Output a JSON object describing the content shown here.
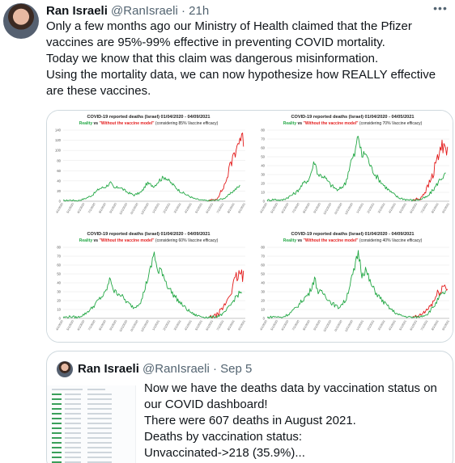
{
  "tweet": {
    "author_name": "Ran Israeli",
    "handle": "@RanIsraeli",
    "separator": "·",
    "time": "21h",
    "lines": [
      "Only a few months ago our Ministry of Health claimed that the Pfizer",
      "vaccines are 95%-99% effective in preventing COVID mortality.",
      "Today we know that this claim was dangerous misinformation.",
      "Using the mortality data, we can now hypothesize how REALLY effective",
      "are these vaccines."
    ]
  },
  "colors": {
    "reality": "#22a744",
    "model": "#e31b1b",
    "text": "#0f1419",
    "muted": "#536471",
    "border": "#cfd9de"
  },
  "icons": {
    "more": "more-icon"
  },
  "chart_data": [
    {
      "type": "line",
      "title": "COVID-19 reported deaths (Israel)  01/04/2020 - 04/09/2021",
      "subtitle_reality": "Reality",
      "subtitle_vs": " vs ",
      "subtitle_model": "\"Without the vaccine model\"",
      "subtitle_note": " (considering 85% Vaccine efficacy)",
      "y_ticks": [
        "0",
        "20",
        "40",
        "60",
        "80",
        "100",
        "120",
        "140"
      ],
      "ylim": [
        0,
        140
      ],
      "x_tick_labels": [
        "4/1/2020",
        "5/1/2020",
        "6/1/2020",
        "7/1/2020",
        "8/1/2020",
        "9/1/2020",
        "10/1/2020",
        "11/1/2020",
        "12/1/2020",
        "1/1/2021",
        "2/1/2021",
        "3/1/2021",
        "4/1/2021",
        "5/1/2021",
        "6/1/2021",
        "7/1/2021",
        "8/1/2021",
        "9/1/2021"
      ],
      "series": [
        {
          "name": "Reality",
          "points": [
            [
              0,
              1
            ],
            [
              4,
              2
            ],
            [
              8,
              1
            ],
            [
              12,
              5
            ],
            [
              16,
              12
            ],
            [
              20,
              25
            ],
            [
              23,
              28
            ],
            [
              26,
              36
            ],
            [
              28,
              25
            ],
            [
              31,
              28
            ],
            [
              35,
              18
            ],
            [
              39,
              12
            ],
            [
              43,
              18
            ],
            [
              46,
              35
            ],
            [
              50,
              30
            ],
            [
              53,
              42
            ],
            [
              56,
              48
            ],
            [
              58,
              40
            ],
            [
              61,
              30
            ],
            [
              64,
              20
            ],
            [
              68,
              12
            ],
            [
              72,
              5
            ],
            [
              76,
              2
            ],
            [
              80,
              1
            ],
            [
              84,
              2
            ],
            [
              88,
              5
            ],
            [
              91,
              12
            ],
            [
              94,
              22
            ],
            [
              97,
              30
            ]
          ]
        },
        {
          "name": "\"Without the vaccine model\"",
          "points": [
            [
              80,
              1
            ],
            [
              84,
              4
            ],
            [
              87,
              20
            ],
            [
              89,
              35
            ],
            [
              91,
              60
            ],
            [
              93,
              85
            ],
            [
              95,
              105
            ],
            [
              97,
              125
            ],
            [
              99,
              120
            ]
          ]
        }
      ]
    },
    {
      "type": "line",
      "title": "COVID-19 reported deaths (Israel)  01/04/2020 - 04/05/2021",
      "subtitle_reality": "Reality",
      "subtitle_vs": " vs ",
      "subtitle_model": "\"Without the vaccine model\"",
      "subtitle_note": " (considering 70% Vaccine efficacy)",
      "y_ticks": [
        "0",
        "10",
        "20",
        "30",
        "40",
        "50",
        "60",
        "70",
        "80"
      ],
      "ylim": [
        0,
        80
      ],
      "x_tick_labels": [
        "4/1/2020",
        "5/1/2020",
        "6/1/2020",
        "7/1/2020",
        "8/1/2020",
        "9/1/2020",
        "10/1/2020",
        "11/1/2020",
        "12/1/2020",
        "1/1/2021",
        "2/1/2021",
        "3/1/2021",
        "4/1/2021",
        "5/1/2021",
        "6/1/2021",
        "7/1/2021",
        "8/1/2021",
        "9/1/2021"
      ],
      "series": [
        {
          "name": "Reality",
          "points": [
            [
              0,
              1
            ],
            [
              4,
              2
            ],
            [
              8,
              1
            ],
            [
              12,
              5
            ],
            [
              16,
              10
            ],
            [
              20,
              20
            ],
            [
              23,
              25
            ],
            [
              26,
              45
            ],
            [
              28,
              30
            ],
            [
              31,
              28
            ],
            [
              35,
              18
            ],
            [
              39,
              12
            ],
            [
              43,
              20
            ],
            [
              46,
              45
            ],
            [
              48,
              52
            ],
            [
              50,
              75
            ],
            [
              52,
              50
            ],
            [
              54,
              55
            ],
            [
              57,
              38
            ],
            [
              60,
              28
            ],
            [
              64,
              18
            ],
            [
              68,
              10
            ],
            [
              72,
              4
            ],
            [
              76,
              2
            ],
            [
              80,
              1
            ],
            [
              84,
              2
            ],
            [
              88,
              5
            ],
            [
              92,
              15
            ],
            [
              95,
              25
            ],
            [
              98,
              30
            ]
          ]
        },
        {
          "name": "\"Without the vaccine model\"",
          "points": [
            [
              80,
              1
            ],
            [
              84,
              3
            ],
            [
              88,
              15
            ],
            [
              91,
              30
            ],
            [
              93,
              45
            ],
            [
              95,
              58
            ],
            [
              97,
              65
            ],
            [
              99,
              60
            ]
          ]
        }
      ]
    },
    {
      "type": "line",
      "title": "COVID-19 reported deaths (Israel)  01/04/2020 - 04/09/2021",
      "subtitle_reality": "Reality",
      "subtitle_vs": " vs ",
      "subtitle_model": "\"Without the vaccine model\"",
      "subtitle_note": " (considering 60% Vaccine efficacy)",
      "y_ticks": [
        "0",
        "10",
        "20",
        "30",
        "40",
        "50",
        "60",
        "70",
        "80"
      ],
      "ylim": [
        0,
        80
      ],
      "x_tick_labels": [
        "4/1/2020",
        "5/1/2020",
        "6/1/2020",
        "7/1/2020",
        "8/1/2020",
        "9/1/2020",
        "10/1/2020",
        "11/1/2020",
        "12/1/2020",
        "1/1/2021",
        "2/1/2021",
        "3/1/2021",
        "4/1/2021",
        "5/1/2021",
        "6/1/2021",
        "7/1/2021",
        "8/1/2021",
        "9/1/2021"
      ],
      "series": [
        {
          "name": "Reality",
          "points": [
            [
              0,
              1
            ],
            [
              4,
              2
            ],
            [
              8,
              1
            ],
            [
              12,
              5
            ],
            [
              16,
              12
            ],
            [
              20,
              22
            ],
            [
              23,
              28
            ],
            [
              26,
              45
            ],
            [
              28,
              30
            ],
            [
              31,
              28
            ],
            [
              35,
              18
            ],
            [
              39,
              12
            ],
            [
              43,
              20
            ],
            [
              46,
              42
            ],
            [
              48,
              55
            ],
            [
              50,
              75
            ],
            [
              52,
              50
            ],
            [
              54,
              55
            ],
            [
              57,
              38
            ],
            [
              60,
              28
            ],
            [
              64,
              18
            ],
            [
              68,
              10
            ],
            [
              72,
              4
            ],
            [
              76,
              2
            ],
            [
              80,
              1
            ],
            [
              84,
              2
            ],
            [
              88,
              5
            ],
            [
              92,
              15
            ],
            [
              95,
              25
            ],
            [
              98,
              30
            ]
          ]
        },
        {
          "name": "\"Without the vaccine model\"",
          "points": [
            [
              80,
              1
            ],
            [
              84,
              3
            ],
            [
              88,
              12
            ],
            [
              91,
              25
            ],
            [
              93,
              35
            ],
            [
              95,
              45
            ],
            [
              97,
              50
            ],
            [
              99,
              46
            ]
          ]
        }
      ]
    },
    {
      "type": "line",
      "title": "COVID-19 reported deaths (Israel)  01/04/2020 - 04/09/2021",
      "subtitle_reality": "Reality",
      "subtitle_vs": " vs ",
      "subtitle_model": "\"Without the vaccine model\"",
      "subtitle_note": " (considering 40% Vaccine efficacy)",
      "y_ticks": [
        "0",
        "10",
        "20",
        "30",
        "40",
        "50",
        "60",
        "70",
        "80"
      ],
      "ylim": [
        0,
        80
      ],
      "x_tick_labels": [
        "4/1/2020",
        "5/1/2020",
        "6/1/2020",
        "7/1/2020",
        "8/1/2020",
        "9/1/2020",
        "10/1/2020",
        "11/1/2020",
        "12/1/2020",
        "1/1/2021",
        "2/1/2021",
        "3/1/2021",
        "4/1/2021",
        "5/1/2021",
        "6/1/2021",
        "7/1/2021",
        "8/1/2021",
        "9/1/2021"
      ],
      "series": [
        {
          "name": "Reality",
          "points": [
            [
              0,
              1
            ],
            [
              4,
              2
            ],
            [
              8,
              1
            ],
            [
              12,
              5
            ],
            [
              16,
              12
            ],
            [
              20,
              22
            ],
            [
              23,
              28
            ],
            [
              26,
              45
            ],
            [
              28,
              30
            ],
            [
              31,
              28
            ],
            [
              35,
              18
            ],
            [
              39,
              12
            ],
            [
              43,
              20
            ],
            [
              46,
              42
            ],
            [
              48,
              55
            ],
            [
              50,
              75
            ],
            [
              52,
              50
            ],
            [
              54,
              55
            ],
            [
              57,
              38
            ],
            [
              60,
              28
            ],
            [
              64,
              18
            ],
            [
              68,
              10
            ],
            [
              72,
              4
            ],
            [
              76,
              2
            ],
            [
              80,
              1
            ],
            [
              84,
              2
            ],
            [
              88,
              5
            ],
            [
              92,
              15
            ],
            [
              95,
              25
            ],
            [
              98,
              30
            ]
          ]
        },
        {
          "name": "\"Without the vaccine model\"",
          "points": [
            [
              80,
              1
            ],
            [
              84,
              3
            ],
            [
              88,
              10
            ],
            [
              91,
              18
            ],
            [
              93,
              25
            ],
            [
              95,
              32
            ],
            [
              97,
              36
            ],
            [
              99,
              34
            ]
          ]
        }
      ]
    }
  ],
  "quote": {
    "author_name": "Ran Israeli",
    "handle": "@RanIsraeli",
    "separator": "·",
    "time": "Sep 5",
    "lines": [
      "Now we have the deaths data by vaccination status on",
      "our COVID dashboard!",
      "There were 607 deaths in August 2021.",
      "Deaths by vaccination status:",
      "Unvaccinated->218 (35.9%)..."
    ]
  }
}
